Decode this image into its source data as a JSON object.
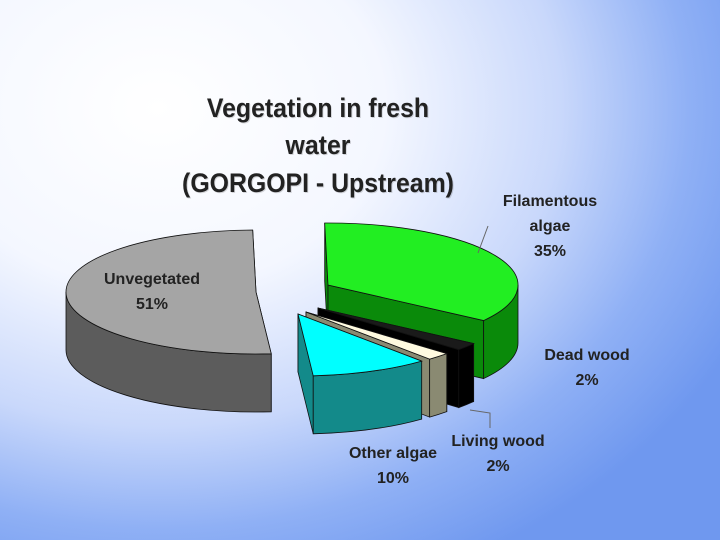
{
  "chart_data": {
    "type": "pie",
    "style": "3d-exploded",
    "title": "Vegetation in fresh water (GORGOPI - Upstream)",
    "title_lines": [
      "Vegetation in fresh water",
      "(GORGOPI - Upstream)"
    ],
    "slices": [
      {
        "label_lines": [
          "Filamentous",
          "algae"
        ],
        "label": "Filamentous algae",
        "value": 35,
        "pct_text": "35%",
        "top_color": "#22ee22",
        "side_color": "#0a8a0a"
      },
      {
        "label_lines": [
          "Dead wood"
        ],
        "label": "Dead wood",
        "value": 2,
        "pct_text": "2%",
        "top_color": "#1a1a1a",
        "side_color": "#000000"
      },
      {
        "label_lines": [
          "Living wood"
        ],
        "label": "Living wood",
        "value": 2,
        "pct_text": "2%",
        "top_color": "#fffbe0",
        "side_color": "#8a8a72"
      },
      {
        "label_lines": [
          "Other algae"
        ],
        "label": "Other algae",
        "value": 10,
        "pct_text": "10%",
        "top_color": "#00ffff",
        "side_color": "#138a8a"
      },
      {
        "label_lines": [
          "Unvegetated"
        ],
        "label": "Unvegetated",
        "value": 51,
        "pct_text": "51%",
        "top_color": "#a5a5a5",
        "side_color": "#5c5c5c"
      }
    ],
    "legend": "none"
  }
}
